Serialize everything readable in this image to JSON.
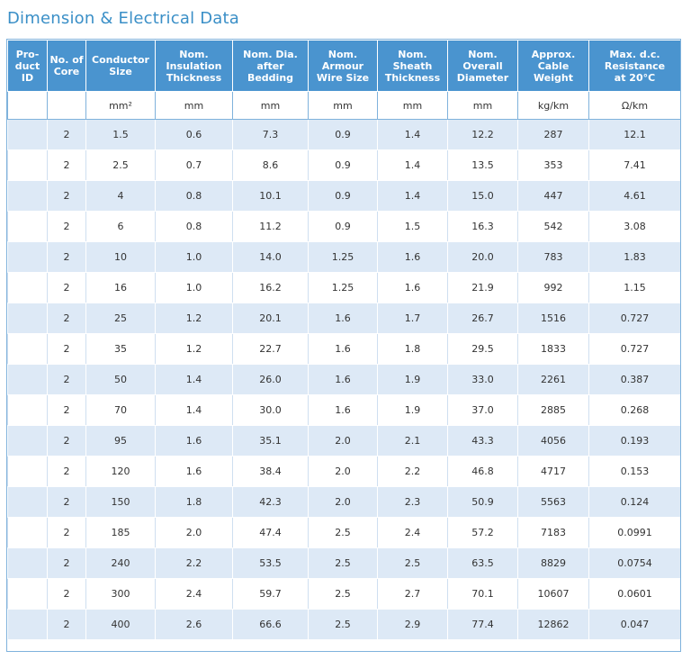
{
  "title": "Dimension & Electrical Data",
  "headers": [
    "Pro-\nduct\nID",
    "No. of\nCore",
    "Conductor\nSize",
    "Nom.\nInsulation\nThickness",
    "Nom. Dia.\nafter\nBedding",
    "Nom.\nArmour\nWire Size",
    "Nom.\nSheath\nThickness",
    "Nom.\nOverall\nDiameter",
    "Approx.\nCable\nWeight",
    "Max. d.c.\nResistance\nat 20°C"
  ],
  "units": [
    "",
    "",
    "mm²",
    "mm",
    "mm",
    "mm",
    "mm",
    "mm",
    "kg/km",
    "Ω/km"
  ],
  "rows": [
    [
      "",
      "2",
      "1.5",
      "0.6",
      "7.3",
      "0.9",
      "1.4",
      "12.2",
      "287",
      "12.1"
    ],
    [
      "",
      "2",
      "2.5",
      "0.7",
      "8.6",
      "0.9",
      "1.4",
      "13.5",
      "353",
      "7.41"
    ],
    [
      "",
      "2",
      "4",
      "0.8",
      "10.1",
      "0.9",
      "1.4",
      "15.0",
      "447",
      "4.61"
    ],
    [
      "",
      "2",
      "6",
      "0.8",
      "11.2",
      "0.9",
      "1.5",
      "16.3",
      "542",
      "3.08"
    ],
    [
      "",
      "2",
      "10",
      "1.0",
      "14.0",
      "1.25",
      "1.6",
      "20.0",
      "783",
      "1.83"
    ],
    [
      "",
      "2",
      "16",
      "1.0",
      "16.2",
      "1.25",
      "1.6",
      "21.9",
      "992",
      "1.15"
    ],
    [
      "",
      "2",
      "25",
      "1.2",
      "20.1",
      "1.6",
      "1.7",
      "26.7",
      "1516",
      "0.727"
    ],
    [
      "",
      "2",
      "35",
      "1.2",
      "22.7",
      "1.6",
      "1.8",
      "29.5",
      "1833",
      "0.727"
    ],
    [
      "",
      "2",
      "50",
      "1.4",
      "26.0",
      "1.6",
      "1.9",
      "33.0",
      "2261",
      "0.387"
    ],
    [
      "",
      "2",
      "70",
      "1.4",
      "30.0",
      "1.6",
      "1.9",
      "37.0",
      "2885",
      "0.268"
    ],
    [
      "",
      "2",
      "95",
      "1.6",
      "35.1",
      "2.0",
      "2.1",
      "43.3",
      "4056",
      "0.193"
    ],
    [
      "",
      "2",
      "120",
      "1.6",
      "38.4",
      "2.0",
      "2.2",
      "46.8",
      "4717",
      "0.153"
    ],
    [
      "",
      "2",
      "150",
      "1.8",
      "42.3",
      "2.0",
      "2.3",
      "50.9",
      "5563",
      "0.124"
    ],
    [
      "",
      "2",
      "185",
      "2.0",
      "47.4",
      "2.5",
      "2.4",
      "57.2",
      "7183",
      "0.0991"
    ],
    [
      "",
      "2",
      "240",
      "2.2",
      "53.5",
      "2.5",
      "2.5",
      "63.5",
      "8829",
      "0.0754"
    ],
    [
      "",
      "2",
      "300",
      "2.4",
      "59.7",
      "2.5",
      "2.7",
      "70.1",
      "10607",
      "0.0601"
    ],
    [
      "",
      "2",
      "400",
      "2.6",
      "66.6",
      "2.5",
      "2.9",
      "77.4",
      "12862",
      "0.047"
    ]
  ]
}
